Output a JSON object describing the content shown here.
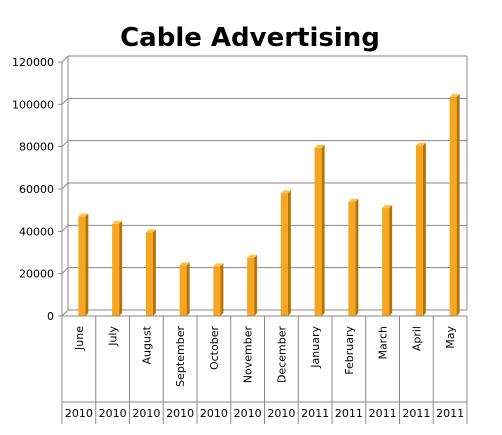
{
  "chart_data": {
    "type": "bar",
    "title": "Cable Advertising",
    "categories": [
      "June",
      "July",
      "August",
      "September",
      "October",
      "November",
      "December",
      "January",
      "February",
      "March",
      "April",
      "May"
    ],
    "years": [
      "2010",
      "2010",
      "2010",
      "2010",
      "2010",
      "2010",
      "2010",
      "2011",
      "2011",
      "2011",
      "2011",
      "2011"
    ],
    "values": [
      47000,
      43500,
      39500,
      24000,
      23500,
      27500,
      58000,
      79500,
      54000,
      51000,
      80500,
      103500
    ],
    "ylim": [
      0,
      120000
    ],
    "yticks": [
      0,
      20000,
      40000,
      60000,
      80000,
      100000,
      120000
    ],
    "xlabel": "",
    "ylabel": "",
    "grid": true,
    "bar_color": "#F5A623",
    "bar_shade_color": "#B87400"
  }
}
